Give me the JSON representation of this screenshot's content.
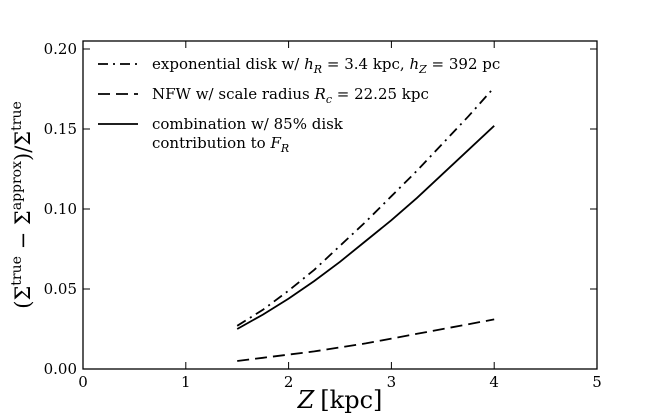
{
  "chart_data": {
    "type": "line",
    "title": "",
    "xlabel": {
      "var": "Z",
      "unit": "[kpc]"
    },
    "ylabel": {
      "numerator": "(Σ",
      "sup1": "true",
      "minus": " − Σ",
      "sup2": "approx",
      "close": ")/Σ",
      "sup3": "true"
    },
    "xlim": [
      0,
      5
    ],
    "ylim": [
      0,
      0.205
    ],
    "xticks": [
      0,
      1,
      2,
      3,
      4,
      5
    ],
    "xtick_labels": [
      "0",
      "1",
      "2",
      "3",
      "4",
      "5"
    ],
    "yticks": [
      0.0,
      0.05,
      0.1,
      0.15,
      0.2
    ],
    "ytick_labels": [
      "0.00",
      "0.05",
      "0.10",
      "0.15",
      "0.20"
    ],
    "grid": false,
    "legend_position": "top-left",
    "series": [
      {
        "name": "exponential disk w/ h_R = 3.4 kpc, h_Z = 392 pc",
        "legend_lines": [
          {
            "plain": "exponential disk w/ ",
            "parts": [
              [
                "h",
                "R",
                " = 3.4 kpc, "
              ],
              [
                "h",
                "Z",
                " = 392 pc"
              ]
            ]
          }
        ],
        "style": "dashdot",
        "x": [
          1.5,
          1.75,
          2.0,
          2.25,
          2.5,
          2.75,
          3.0,
          3.25,
          3.5,
          3.75,
          4.0
        ],
        "y": [
          0.027,
          0.037,
          0.049,
          0.062,
          0.077,
          0.092,
          0.108,
          0.124,
          0.141,
          0.158,
          0.176
        ]
      },
      {
        "name": "NFW w/ scale radius R_c = 22.25 kpc",
        "legend_lines": [
          {
            "plain": "NFW w/ scale radius ",
            "parts": [
              [
                "R",
                "c",
                " = 22.25 kpc"
              ]
            ]
          }
        ],
        "style": "dashed",
        "x": [
          1.5,
          1.75,
          2.0,
          2.25,
          2.5,
          2.75,
          3.0,
          3.25,
          3.5,
          3.75,
          4.0
        ],
        "y": [
          0.005,
          0.007,
          0.009,
          0.011,
          0.0135,
          0.016,
          0.019,
          0.022,
          0.025,
          0.028,
          0.031
        ]
      },
      {
        "name": "combination w/ 85% disk contribution to F_R",
        "legend_lines": [
          {
            "plain": "combination w/ 85% disk",
            "parts": []
          },
          {
            "plain": "contribution to ",
            "parts": [
              [
                "F",
                "R",
                ""
              ]
            ]
          }
        ],
        "style": "solid",
        "x": [
          1.5,
          1.75,
          2.0,
          2.25,
          2.5,
          2.75,
          3.0,
          3.25,
          3.5,
          3.75,
          4.0
        ],
        "y": [
          0.025,
          0.034,
          0.044,
          0.055,
          0.067,
          0.08,
          0.093,
          0.107,
          0.122,
          0.137,
          0.152
        ]
      }
    ]
  }
}
